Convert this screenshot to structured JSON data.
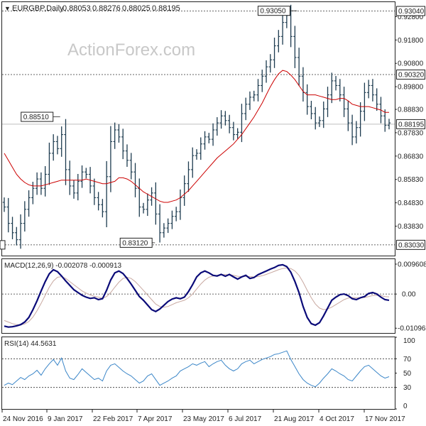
{
  "header": {
    "symbol_text": "EURGBP,Daily",
    "ohlc": [
      "0.88053",
      "0.88276",
      "0.88025",
      "0.88195"
    ],
    "marker": "▼"
  },
  "watermark": "ActionForex.com",
  "colors": {
    "price_bars": "#1d3b4f",
    "moving_average": "#cc0000",
    "macd_line": "#0a0a78",
    "macd_signal": "#c8a8a0",
    "rsi_line": "#3b86c8",
    "grid": "#222222",
    "watermark": "#c8c8c8"
  },
  "chart_data": [
    {
      "type": "candlestick",
      "panel": "price",
      "title": "EURGBP,Daily",
      "ylim": [
        0.8257,
        0.9342
      ],
      "price_axis_ticks": [
        "0.92800",
        "0.91800",
        "0.90800",
        "0.89800",
        "0.88830",
        "0.87830",
        "0.86830",
        "0.85830",
        "0.84830",
        "0.83830"
      ],
      "axis_labels": [
        {
          "text": "0.93040",
          "value": 0.9304
        },
        {
          "text": "0.90320",
          "value": 0.9032
        },
        {
          "text": "0.88195",
          "value": 0.88195
        },
        {
          "text": "0.83030",
          "value": 0.8303
        }
      ],
      "annotations": [
        {
          "text": "0.93050",
          "value": 0.9305,
          "x": "21 Aug 2017"
        },
        {
          "text": "0.88510",
          "value": 0.8851,
          "x": "9 Jan 2017"
        },
        {
          "text": "0.83120",
          "value": 0.8312,
          "x": "7 Apr 2017"
        }
      ],
      "reference_lines": [
        0.9304,
        0.9032,
        0.8303
      ],
      "last_price": 0.88195,
      "x_labels": [
        "24 Nov 2016",
        "9 Jan 2017",
        "22 Feb 2017",
        "7 Apr 2017",
        "23 May 2017",
        "6 Jul 2017",
        "21 Aug 2017",
        "4 Oct 2017",
        "17 Nov 2017"
      ],
      "closes": [
        0.8465,
        0.8395,
        0.8355,
        0.8325,
        0.8395,
        0.8455,
        0.8505,
        0.8545,
        0.8585,
        0.8545,
        0.8605,
        0.8695,
        0.8745,
        0.8715,
        0.8775,
        0.8625,
        0.8555,
        0.8525,
        0.8575,
        0.8615,
        0.8605,
        0.8555,
        0.8505,
        0.8475,
        0.8445,
        0.8595,
        0.8745,
        0.8795,
        0.8765,
        0.8705,
        0.8665,
        0.8615,
        0.8545,
        0.8465,
        0.8455,
        0.8495,
        0.8525,
        0.8435,
        0.8355,
        0.8375,
        0.8395,
        0.8425,
        0.8445,
        0.8505,
        0.8565,
        0.8625,
        0.8685,
        0.8695,
        0.8735,
        0.8765,
        0.8755,
        0.8795,
        0.8825,
        0.8855,
        0.8835,
        0.8805,
        0.8775,
        0.8785,
        0.8865,
        0.8905,
        0.8935,
        0.8945,
        0.8985,
        0.9025,
        0.9065,
        0.9095,
        0.9155,
        0.9195,
        0.9255,
        0.9285,
        0.9195,
        0.9105,
        0.9025,
        0.8955,
        0.8895,
        0.8865,
        0.8825,
        0.8835,
        0.8885,
        0.8945,
        0.9005,
        0.8985,
        0.8945,
        0.8885,
        0.8825,
        0.8765,
        0.8805,
        0.8875,
        0.8955,
        0.8985,
        0.8945,
        0.8905,
        0.8855,
        0.8815,
        0.8825
      ],
      "ma_values": [
        0.8695,
        0.8665,
        0.8635,
        0.8605,
        0.8585,
        0.857,
        0.856,
        0.8555,
        0.8555,
        0.8555,
        0.856,
        0.8565,
        0.857,
        0.8575,
        0.858,
        0.858,
        0.858,
        0.858,
        0.858,
        0.858,
        0.8585,
        0.858,
        0.8575,
        0.857,
        0.8565,
        0.8565,
        0.857,
        0.8575,
        0.859,
        0.859,
        0.8585,
        0.8575,
        0.856,
        0.8545,
        0.853,
        0.852,
        0.851,
        0.85,
        0.849,
        0.8485,
        0.8485,
        0.849,
        0.8495,
        0.8505,
        0.852,
        0.8535,
        0.8555,
        0.8575,
        0.8595,
        0.8615,
        0.8635,
        0.8655,
        0.8675,
        0.869,
        0.8705,
        0.872,
        0.8735,
        0.8755,
        0.8775,
        0.88,
        0.8825,
        0.885,
        0.888,
        0.891,
        0.8945,
        0.898,
        0.901,
        0.9035,
        0.905,
        0.9045,
        0.903,
        0.901,
        0.8985,
        0.896,
        0.8945,
        0.8945,
        0.8945,
        0.894,
        0.8935,
        0.893,
        0.8925,
        0.8925,
        0.893,
        0.893,
        0.892,
        0.8905,
        0.89,
        0.8895,
        0.8895,
        0.8895,
        0.889,
        0.8885,
        0.888,
        0.887,
        0.887
      ]
    },
    {
      "type": "line",
      "panel": "macd",
      "title": "MACD(12,26,9) -0.002078 -0.000913",
      "ylim": [
        -0.0125,
        0.0112
      ],
      "axis_labels": [
        {
          "text": "0.009608",
          "value": 0.009608
        },
        {
          "text": "0.00",
          "value": 0
        },
        {
          "text": "-0.010961",
          "value": -0.010961
        }
      ],
      "series": [
        {
          "values": [
            -0.0103,
            -0.0106,
            -0.0105,
            -0.0102,
            -0.0098,
            -0.009,
            -0.0075,
            -0.005,
            -0.0022,
            0.001,
            0.004,
            0.0065,
            0.0078,
            0.0072,
            0.0058,
            0.0042,
            0.0028,
            0.0014,
            0.0005,
            -0.0004,
            -0.001,
            -0.0014,
            -0.0012,
            -0.0018,
            -0.0015,
            0.0012,
            0.0045,
            0.0068,
            0.0074,
            0.0066,
            0.005,
            0.0032,
            0.0012,
            -0.0008,
            -0.002,
            -0.0035,
            -0.005,
            -0.0056,
            -0.0048,
            -0.0036,
            -0.0024,
            -0.0016,
            -0.0012,
            -0.0015,
            -0.001,
            0.0008,
            0.003,
            0.0055,
            0.0068,
            0.0074,
            0.0068,
            0.006,
            0.0058,
            0.0063,
            0.0057,
            0.0063,
            0.0055,
            0.0048,
            0.0055,
            0.006,
            0.005,
            0.0053,
            0.0062,
            0.0068,
            0.0074,
            0.008,
            0.0085,
            0.0092,
            0.0094,
            0.0088,
            0.007,
            0.004,
            0.0005,
            -0.004,
            -0.0075,
            -0.0095,
            -0.01,
            -0.0092,
            -0.007,
            -0.0045,
            -0.002,
            -0.001,
            -0.0002,
            0.0,
            -0.0005,
            -0.0015,
            -0.0018,
            -0.0012,
            -0.0008,
            0.0002,
            0.0005,
            0.0,
            -0.001,
            -0.0018,
            -0.002
          ]
        },
        {
          "values": [
            -0.0085,
            -0.009,
            -0.0095,
            -0.0098,
            -0.0099,
            -0.0096,
            -0.0088,
            -0.0074,
            -0.0054,
            -0.003,
            -0.0004,
            0.0022,
            0.0042,
            0.0054,
            0.0056,
            0.005,
            0.004,
            0.003,
            0.002,
            0.001,
            0.0003,
            -0.0003,
            -0.0007,
            -0.001,
            -0.0013,
            -0.0008,
            0.0005,
            0.0022,
            0.0038,
            0.005,
            0.0054,
            0.005,
            0.004,
            0.0026,
            0.0012,
            -0.0003,
            -0.0018,
            -0.0032,
            -0.004,
            -0.0042,
            -0.004,
            -0.0034,
            -0.0028,
            -0.0024,
            -0.002,
            -0.0012,
            0.0,
            0.0016,
            0.0032,
            0.0045,
            0.0054,
            0.0058,
            0.006,
            0.0062,
            0.0062,
            0.0062,
            0.006,
            0.0057,
            0.0056,
            0.0057,
            0.0056,
            0.0055,
            0.0056,
            0.0059,
            0.0063,
            0.0068,
            0.0073,
            0.0078,
            0.0082,
            0.0084,
            0.0082,
            0.0074,
            0.006,
            0.0038,
            0.0012,
            -0.0012,
            -0.0032,
            -0.0045,
            -0.005,
            -0.0048,
            -0.0042,
            -0.0034,
            -0.0026,
            -0.0018,
            -0.0013,
            -0.0011,
            -0.0012,
            -0.0012,
            -0.0011,
            -0.0008,
            -0.0005,
            -0.0004,
            -0.0005,
            -0.0008,
            -0.0009
          ]
        }
      ]
    },
    {
      "type": "line",
      "panel": "rsi",
      "title": "RSI(14) 44.5631",
      "ylim": [
        0,
        100
      ],
      "axis_labels": [
        {
          "text": "100",
          "value": 100
        },
        {
          "text": "70",
          "value": 70
        },
        {
          "text": "50",
          "value": 50
        },
        {
          "text": "30",
          "value": 30
        },
        {
          "text": "0",
          "value": 0
        }
      ],
      "reference_lines": [
        70,
        30
      ],
      "series": [
        {
          "values": [
            33,
            36,
            34,
            39,
            44,
            41,
            46,
            49,
            54,
            47,
            56,
            63,
            69,
            61,
            71,
            53,
            43,
            41,
            48,
            56,
            51,
            46,
            41,
            43,
            39,
            53,
            61,
            63,
            58,
            53,
            49,
            46,
            41,
            36,
            39,
            46,
            49,
            41,
            33,
            36,
            39,
            43,
            46,
            53,
            56,
            59,
            63,
            61,
            64,
            66,
            59,
            63,
            66,
            68,
            61,
            56,
            53,
            56,
            63,
            66,
            68,
            63,
            66,
            69,
            71,
            73,
            76,
            77,
            79,
            81,
            69,
            59,
            49,
            41,
            36,
            33,
            31,
            36,
            43,
            49,
            56,
            53,
            49,
            46,
            41,
            39,
            46,
            53,
            59,
            61,
            56,
            51,
            46,
            43,
            45
          ]
        }
      ]
    }
  ]
}
